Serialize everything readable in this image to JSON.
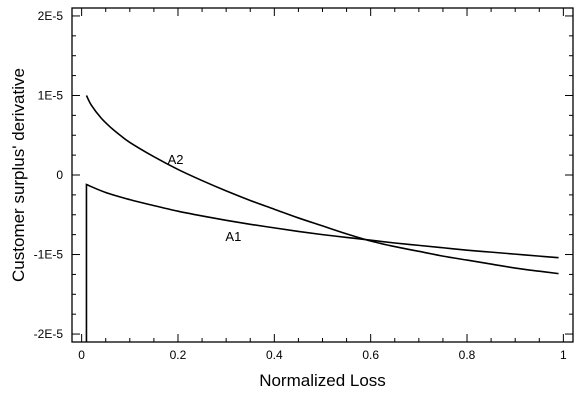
{
  "chart_data": {
    "type": "line",
    "title": "",
    "xlabel": "Normalized Loss",
    "ylabel": "Customer surplus' derivative",
    "xlim": [
      -0.02,
      1.02
    ],
    "ylim": [
      -2.1e-05,
      2.1e-05
    ],
    "x_ticks": [
      0,
      0.2,
      0.4,
      0.6,
      0.8,
      1
    ],
    "x_tick_labels": [
      "0",
      "0.2",
      "0.4",
      "0.6",
      "0.8",
      "1"
    ],
    "y_ticks": [
      2e-05,
      1e-05,
      0,
      -1e-05,
      -2e-05
    ],
    "y_tick_labels": [
      "2E-5",
      "1E-5",
      "0",
      "-1E-5",
      "-2E-5"
    ],
    "grid": false,
    "legend": "none",
    "series": [
      {
        "name": "A1",
        "color": "#000000",
        "x": [
          0.01,
          0.01,
          0.05,
          0.1,
          0.15,
          0.2,
          0.25,
          0.3,
          0.35,
          0.4,
          0.45,
          0.5,
          0.55,
          0.6,
          0.65,
          0.7,
          0.75,
          0.8,
          0.85,
          0.9,
          0.95,
          0.99
        ],
        "y": [
          -2.1e-05,
          -1.2e-06,
          -2.2e-06,
          -3.1e-06,
          -3.85e-06,
          -4.55e-06,
          -5.15e-06,
          -5.7e-06,
          -6.2e-06,
          -6.65e-06,
          -7.1e-06,
          -7.5e-06,
          -7.85e-06,
          -8.2e-06,
          -8.55e-06,
          -8.85e-06,
          -9.15e-06,
          -9.45e-06,
          -9.7e-06,
          -9.95e-06,
          -1.02e-05,
          -1.04e-05
        ]
      },
      {
        "name": "A2",
        "color": "#000000",
        "x": [
          0.01,
          0.02,
          0.04,
          0.06,
          0.08,
          0.1,
          0.15,
          0.2,
          0.25,
          0.3,
          0.35,
          0.4,
          0.45,
          0.5,
          0.55,
          0.6,
          0.65,
          0.7,
          0.75,
          0.8,
          0.85,
          0.9,
          0.95,
          0.99
        ],
        "y": [
          1e-05,
          8.8e-06,
          7.2e-06,
          6e-06,
          5e-06,
          4.1e-06,
          2.3e-06,
          7e-07,
          -7e-07,
          -2e-06,
          -3.2e-06,
          -4.3e-06,
          -5.4e-06,
          -6.4e-06,
          -7.4e-06,
          -8.3e-06,
          -9e-06,
          -9.6e-06,
          -1.02e-05,
          -1.07e-05,
          -1.12e-05,
          -1.17e-05,
          -1.21e-05,
          -1.24e-05
        ]
      }
    ],
    "annotations": [
      {
        "text": "A2",
        "x": 0.195,
        "y": 1.4e-06
      },
      {
        "text": "A1",
        "x": 0.315,
        "y": -8.3e-06
      }
    ]
  }
}
